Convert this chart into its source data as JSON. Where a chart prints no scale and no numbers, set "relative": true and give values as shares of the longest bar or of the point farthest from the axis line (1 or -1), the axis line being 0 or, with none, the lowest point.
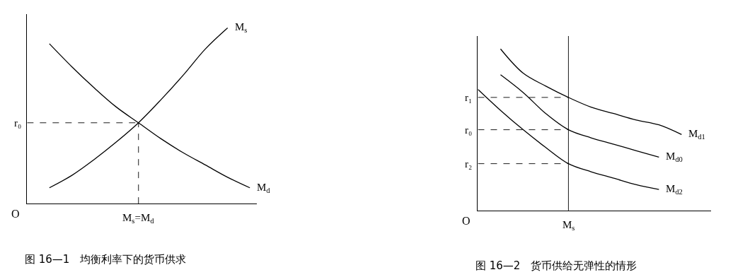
{
  "chart_data": [
    {
      "type": "line",
      "title": "图 16—1　均衡利率下的货币供求",
      "relative": true,
      "line_style": "solid",
      "categories": [
        null,
        null,
        null,
        null,
        null,
        null,
        null,
        null,
        null,
        null,
        null
      ],
      "series": [
        {
          "name": "M$_{s}$",
          "color": "#000000",
          "values": [
            null,
            0.09,
            0.16,
            0.25,
            0.35,
            0.46,
            0.59,
            0.73,
            0.88,
            1.0,
            null
          ]
        },
        {
          "name": "M$_{d}$",
          "color": "#000000",
          "values": [
            null,
            0.91,
            0.78,
            0.66,
            0.55,
            0.46,
            0.37,
            0.29,
            0.22,
            0.15,
            0.09
          ]
        }
      ],
      "ref_lines": [
        {
          "axis": "y",
          "value": 0.46,
          "label": "r₀",
          "line_style": "dashed"
        }
      ],
      "annotations": [
        "O",
        "M$_{s}$=M$_{d}$"
      ]
    },
    {
      "type": "line",
      "title": "图 16—2　货币供给无弹性的情形",
      "relative": true,
      "line_style": "solid",
      "categories": [
        null,
        null,
        null,
        null,
        null,
        null,
        null,
        null,
        null,
        null,
        null
      ],
      "series": [
        {
          "name": "M$_{d1}$",
          "color": "#000000",
          "values": [
            null,
            1.0,
            0.85,
            0.77,
            0.7,
            0.64,
            0.6,
            0.56,
            0.53,
            0.47,
            null
          ]
        },
        {
          "name": "M$_{d0}$",
          "color": "#000000",
          "values": [
            null,
            0.84,
            0.73,
            0.6,
            0.5,
            0.45,
            0.41,
            0.37,
            0.33,
            null,
            null
          ]
        },
        {
          "name": "M$_{d2}$",
          "color": "#000000",
          "values": [
            0.75,
            0.62,
            0.5,
            0.39,
            0.29,
            0.24,
            0.2,
            0.16,
            0.13,
            null,
            null
          ]
        }
      ],
      "ref_lines": [
        {
          "axis": "y",
          "value": 0.7,
          "label": "r₁",
          "line_style": "dashed"
        },
        {
          "axis": "y",
          "value": 0.5,
          "label": "r₀",
          "line_style": "dashed"
        },
        {
          "axis": "y",
          "value": 0.29,
          "label": "r₂",
          "line_style": "dashed"
        }
      ],
      "annotations": [
        "O",
        "M$_{s}$"
      ]
    }
  ]
}
